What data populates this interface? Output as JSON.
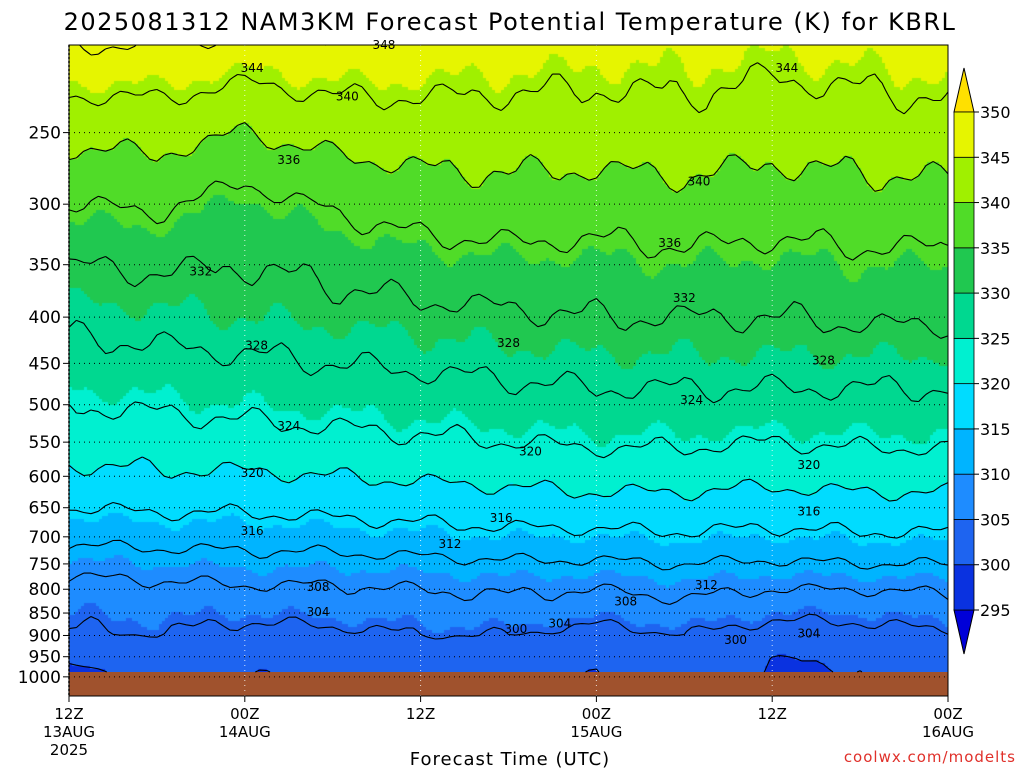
{
  "chart_data": {
    "type": "contour",
    "title": "2025081312 NAM3KM Forecast Potential Temperature (K) for KBRL",
    "xlabel": "Forecast Time (UTC)",
    "ylabel": "",
    "y_ticks": [
      250,
      300,
      350,
      400,
      450,
      500,
      550,
      600,
      650,
      700,
      750,
      800,
      850,
      900,
      950,
      1000
    ],
    "y_range": [
      200,
      1050
    ],
    "y_scale": "log",
    "x_ticks": [
      {
        "line1": "12Z",
        "line2": "13AUG",
        "line3": "2025"
      },
      {
        "line1": "00Z",
        "line2": "14AUG",
        "line3": ""
      },
      {
        "line1": "12Z",
        "line2": "",
        "line3": ""
      },
      {
        "line1": "00Z",
        "line2": "15AUG",
        "line3": ""
      },
      {
        "line1": "12Z",
        "line2": "",
        "line3": ""
      },
      {
        "line1": "00Z",
        "line2": "16AUG",
        "line3": ""
      }
    ],
    "x_range_hours": [
      0,
      60
    ],
    "grid": true,
    "colorbar": {
      "levels": [
        295,
        300,
        305,
        310,
        315,
        320,
        325,
        330,
        335,
        340,
        345,
        350
      ],
      "colors": [
        "#0000d8",
        "#0a32e0",
        "#1e64f0",
        "#1e8cff",
        "#00b4ff",
        "#00dcff",
        "#00f0d0",
        "#00d890",
        "#20c850",
        "#50dc28",
        "#a0f000",
        "#e6f500",
        "#ffe000"
      ],
      "placement": "right"
    },
    "ground_color": "#a0522d",
    "contour_interval": 4,
    "theta_profiles": [
      {
        "hour": 0,
        "pressure": [
          1000,
          950,
          900,
          850,
          800,
          750,
          700,
          650,
          600,
          550,
          500,
          450,
          400,
          350,
          300,
          250,
          200
        ],
        "theta": [
          298.5,
          301,
          303.5,
          305,
          306.5,
          309.5,
          313,
          316,
          319,
          322,
          324,
          326.5,
          329,
          332,
          336,
          341,
          348
        ]
      },
      {
        "hour": 6,
        "pressure": [
          1000,
          950,
          900,
          850,
          800,
          750,
          700,
          650,
          600,
          550,
          500,
          450,
          400,
          350,
          300,
          250,
          200
        ],
        "theta": [
          301,
          302,
          304,
          305.5,
          307,
          310,
          313.5,
          316.5,
          319.5,
          322,
          324.5,
          327,
          329.5,
          332.5,
          336.5,
          341.5,
          348
        ]
      },
      {
        "hour": 12,
        "pressure": [
          1000,
          950,
          900,
          850,
          800,
          750,
          700,
          650,
          600,
          550,
          500,
          450,
          400,
          350,
          300,
          250,
          200
        ],
        "theta": [
          299.8,
          300.5,
          302.5,
          305,
          307.5,
          310.5,
          313.5,
          316.5,
          319.5,
          322.5,
          325,
          327.5,
          330,
          332,
          334.5,
          340,
          347
        ]
      },
      {
        "hour": 18,
        "pressure": [
          1000,
          950,
          900,
          850,
          800,
          750,
          700,
          650,
          600,
          550,
          500,
          450,
          400,
          350,
          300,
          250,
          200
        ],
        "theta": [
          300.5,
          301,
          303,
          305.5,
          307.5,
          310.5,
          314,
          317,
          320,
          323,
          325.5,
          328,
          330.5,
          333,
          336.5,
          341.5,
          347.5
        ]
      },
      {
        "hour": 24,
        "pressure": [
          1000,
          950,
          900,
          850,
          800,
          750,
          700,
          650,
          600,
          550,
          500,
          450,
          400,
          350,
          300,
          250,
          200
        ],
        "theta": [
          303,
          302.5,
          304,
          306,
          308,
          311,
          314.5,
          317.5,
          320.5,
          323.5,
          326,
          328.5,
          331,
          334,
          338,
          342,
          347
        ]
      },
      {
        "hour": 30,
        "pressure": [
          1000,
          950,
          900,
          850,
          800,
          750,
          700,
          650,
          600,
          550,
          500,
          450,
          400,
          350,
          300,
          250,
          200
        ],
        "theta": [
          302,
          302.5,
          304,
          306.5,
          308.5,
          311.5,
          315,
          318,
          321,
          324,
          326.5,
          329,
          331.5,
          334.5,
          338.5,
          342,
          346.5
        ]
      },
      {
        "hour": 36,
        "pressure": [
          1000,
          950,
          900,
          850,
          800,
          750,
          700,
          650,
          600,
          550,
          500,
          450,
          400,
          350,
          300,
          250,
          200
        ],
        "theta": [
          299.8,
          300.5,
          302.5,
          305.5,
          308,
          311.5,
          315,
          318.5,
          321.5,
          324.5,
          327,
          329.5,
          332,
          334.5,
          338,
          342,
          346
        ]
      },
      {
        "hour": 42,
        "pressure": [
          1000,
          950,
          900,
          850,
          800,
          750,
          700,
          650,
          600,
          550,
          500,
          450,
          400,
          350,
          300,
          250,
          200
        ],
        "theta": [
          302.5,
          302.5,
          304,
          306.5,
          309,
          312,
          315.5,
          318.5,
          321.5,
          324.5,
          327,
          329.5,
          332,
          335,
          338.5,
          342.5,
          346
        ]
      },
      {
        "hour": 48,
        "pressure": [
          1000,
          950,
          900,
          850,
          800,
          750,
          700,
          650,
          600,
          550,
          500,
          450,
          400,
          350,
          300,
          250,
          200
        ],
        "theta": [
          299.5,
          300,
          302,
          305,
          308,
          311.5,
          315,
          318,
          321,
          324,
          327,
          329.5,
          332,
          334.5,
          338,
          341.5,
          345.5
        ]
      },
      {
        "hour": 54,
        "pressure": [
          1000,
          950,
          900,
          850,
          800,
          750,
          700,
          650,
          600,
          550,
          500,
          450,
          400,
          350,
          300,
          250,
          200
        ],
        "theta": [
          299.8,
          300.5,
          302.5,
          305,
          308,
          312,
          315.5,
          318.5,
          321.5,
          324.5,
          327,
          329.5,
          332.5,
          335,
          338.5,
          342,
          346
        ]
      },
      {
        "hour": 60,
        "pressure": [
          1000,
          950,
          900,
          850,
          800,
          750,
          700,
          650,
          600,
          550,
          500,
          450,
          400,
          350,
          300,
          250,
          200
        ],
        "theta": [
          303,
          302.5,
          303.5,
          306,
          308.5,
          312,
          315.5,
          318.5,
          321.5,
          324.5,
          327,
          329.5,
          332.5,
          335,
          338.5,
          342.5,
          346.5
        ]
      }
    ],
    "contour_labels": [
      {
        "text": "348",
        "hour": 21.5,
        "pressure": 200
      },
      {
        "text": "344",
        "hour": 12.5,
        "pressure": 212
      },
      {
        "text": "344",
        "hour": 49,
        "pressure": 212
      },
      {
        "text": "340",
        "hour": 19,
        "pressure": 228
      },
      {
        "text": "340",
        "hour": 43,
        "pressure": 283
      },
      {
        "text": "336",
        "hour": 15,
        "pressure": 268
      },
      {
        "text": "336",
        "hour": 41,
        "pressure": 331
      },
      {
        "text": "332",
        "hour": 9,
        "pressure": 356
      },
      {
        "text": "332",
        "hour": 42,
        "pressure": 381
      },
      {
        "text": "328",
        "hour": 12.8,
        "pressure": 430
      },
      {
        "text": "328",
        "hour": 30,
        "pressure": 427
      },
      {
        "text": "328",
        "hour": 51.5,
        "pressure": 447
      },
      {
        "text": "324",
        "hour": 15,
        "pressure": 528
      },
      {
        "text": "324",
        "hour": 42.5,
        "pressure": 494
      },
      {
        "text": "320",
        "hour": 12.5,
        "pressure": 595
      },
      {
        "text": "320",
        "hour": 31.5,
        "pressure": 563
      },
      {
        "text": "320",
        "hour": 50.5,
        "pressure": 583
      },
      {
        "text": "316",
        "hour": 12.5,
        "pressure": 690
      },
      {
        "text": "316",
        "hour": 29.5,
        "pressure": 667
      },
      {
        "text": "316",
        "hour": 50.5,
        "pressure": 656
      },
      {
        "text": "312",
        "hour": 26,
        "pressure": 713
      },
      {
        "text": "312",
        "hour": 43.5,
        "pressure": 791
      },
      {
        "text": "308",
        "hour": 17,
        "pressure": 795
      },
      {
        "text": "308",
        "hour": 38,
        "pressure": 825
      },
      {
        "text": "304",
        "hour": 17,
        "pressure": 848
      },
      {
        "text": "304",
        "hour": 33.5,
        "pressure": 873
      },
      {
        "text": "304",
        "hour": 50.5,
        "pressure": 895
      },
      {
        "text": "300",
        "hour": 30.5,
        "pressure": 885
      },
      {
        "text": "300",
        "hour": 45.5,
        "pressure": 910
      }
    ]
  },
  "credit": "coolwx.com/modelts"
}
